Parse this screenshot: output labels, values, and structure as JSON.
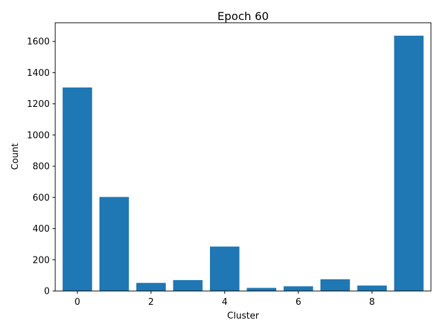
{
  "chart_data": {
    "type": "bar",
    "title": "Epoch 60",
    "xlabel": "Cluster",
    "ylabel": "Count",
    "categories": [
      0,
      1,
      2,
      3,
      4,
      5,
      6,
      7,
      8,
      9
    ],
    "values": [
      1305,
      603,
      52,
      70,
      285,
      20,
      30,
      75,
      35,
      1637
    ],
    "xlim": [
      -0.6,
      9.6
    ],
    "ylim": [
      0,
      1720
    ],
    "xticks": [
      0,
      2,
      4,
      6,
      8
    ],
    "yticks": [
      0,
      200,
      400,
      600,
      800,
      1000,
      1200,
      1400,
      1600
    ],
    "bar_color": "#1f77b4",
    "grid": false,
    "legend": false
  }
}
